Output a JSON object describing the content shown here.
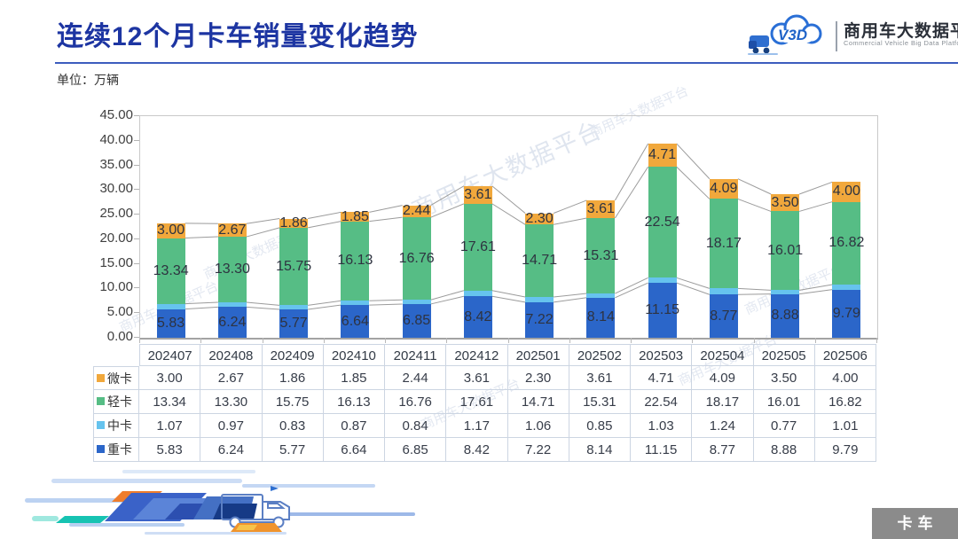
{
  "header": {
    "title": "连续12个月卡车销量变化趋势",
    "unit_label": "单位：万辆",
    "logo": {
      "icon_text": "CV3D",
      "name_zh": "商用车大数据平台",
      "name_en": "Commercial Vehicle Big Data Platform"
    }
  },
  "watermark_text": "商用车大数据平台",
  "footer": {
    "badge_label": "卡车"
  },
  "chart_data": {
    "type": "bar",
    "subtype": "stacked-column-with-series-lines-and-data-table",
    "title": "连续12个月卡车销量变化趋势",
    "unit": "万辆",
    "xlabel": "",
    "ylabel": "",
    "ylim": [
      0,
      45
    ],
    "ytick_step": 5,
    "grid": false,
    "legend_position": "table-left",
    "categories": [
      "202407",
      "202408",
      "202409",
      "202410",
      "202411",
      "202412",
      "202501",
      "202502",
      "202503",
      "202504",
      "202505",
      "202506"
    ],
    "series": [
      {
        "name": "微卡",
        "color": "#f1a83c",
        "show_labels": true,
        "values": [
          3.0,
          2.67,
          1.86,
          1.85,
          2.44,
          3.61,
          2.3,
          3.61,
          4.71,
          4.09,
          3.5,
          4.0
        ]
      },
      {
        "name": "轻卡",
        "color": "#56bd85",
        "show_labels": true,
        "values": [
          13.34,
          13.3,
          15.75,
          16.13,
          16.76,
          17.61,
          14.71,
          15.31,
          22.54,
          18.17,
          16.01,
          16.82
        ]
      },
      {
        "name": "中卡",
        "color": "#66c3ee",
        "show_labels": false,
        "values": [
          1.07,
          0.97,
          0.83,
          0.87,
          0.84,
          1.17,
          1.06,
          0.85,
          1.03,
          1.24,
          0.77,
          1.01
        ]
      },
      {
        "name": "重卡",
        "color": "#2b66c9",
        "show_labels": true,
        "values": [
          5.83,
          6.24,
          5.77,
          6.64,
          6.85,
          8.42,
          7.22,
          8.14,
          11.15,
          8.77,
          8.88,
          9.79
        ]
      }
    ],
    "stack_order_bottom_to_top": [
      "重卡",
      "中卡",
      "轻卡",
      "微卡"
    ]
  }
}
